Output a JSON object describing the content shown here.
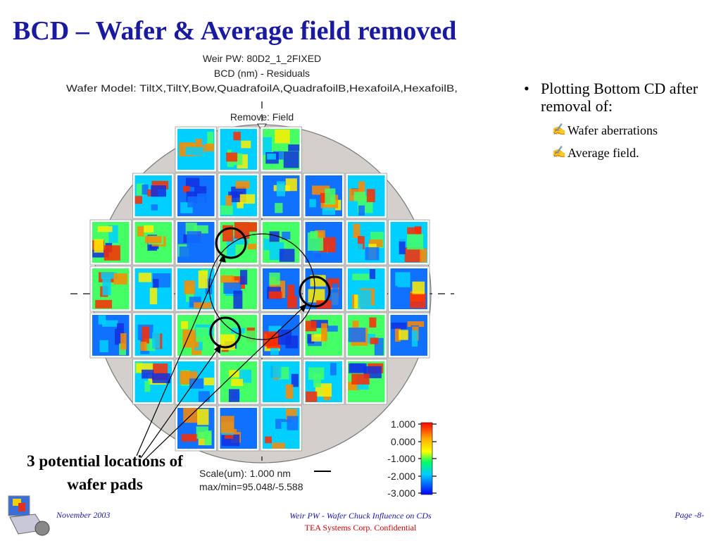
{
  "slide": {
    "title": "BCD – Wafer & Average field removed"
  },
  "plot": {
    "title_line1": "Weir PW: 80D2_1_2FIXED",
    "title_line2": "BCD (nm) - Residuals",
    "title_line3": "Wafer Model: TiltX,TiltY,Bow,QuadrafoilA,QuadrafoilB,HexafoilA,HexafoilB,",
    "remove_label": "Remove: Field",
    "scale_label": "Scale(um): 1.000 nm",
    "maxmin_label": "max/min=95.048/-5.588",
    "colorbar_ticks": [
      "1.000",
      "0.000",
      "-1.000",
      "-2.000",
      "-3.000"
    ]
  },
  "bullets": {
    "main": "Plotting Bottom CD after removal of:",
    "subitems": [
      "Wafer aberrations",
      "Average field."
    ]
  },
  "callout": {
    "line1": "3 potential locations of",
    "line2": "wafer pads"
  },
  "footer": {
    "date": "November 2003",
    "center_line1": "Weir PW - Wafer Chuck Influence on CDs",
    "center_line2": "TEA Systems Corp. Confidential",
    "page": "Page -8-"
  },
  "colors": {
    "title": "#1a1aa0",
    "wafer_fill": "#d3d0cc",
    "confidential": "#cc0000"
  }
}
